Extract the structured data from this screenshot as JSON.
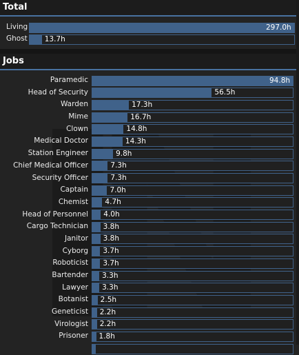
{
  "total": {
    "title": "Total",
    "max": 297.0,
    "rows": [
      {
        "label": "Living",
        "value": 297.0,
        "text": "297.0h"
      },
      {
        "label": "Ghost",
        "value": 13.7,
        "text": "13.7h"
      }
    ]
  },
  "jobs": {
    "title": "Jobs",
    "max": 94.8,
    "rows": [
      {
        "label": "Paramedic",
        "value": 94.8,
        "text": "94.8h"
      },
      {
        "label": "Head of Security",
        "value": 56.5,
        "text": "56.5h"
      },
      {
        "label": "Warden",
        "value": 17.3,
        "text": "17.3h"
      },
      {
        "label": "Mime",
        "value": 16.7,
        "text": "16.7h"
      },
      {
        "label": "Clown",
        "value": 14.8,
        "text": "14.8h"
      },
      {
        "label": "Medical Doctor",
        "value": 14.3,
        "text": "14.3h"
      },
      {
        "label": "Station Engineer",
        "value": 9.8,
        "text": "9.8h"
      },
      {
        "label": "Chief Medical Officer",
        "value": 7.3,
        "text": "7.3h"
      },
      {
        "label": "Security Officer",
        "value": 7.3,
        "text": "7.3h"
      },
      {
        "label": "Captain",
        "value": 7.0,
        "text": "7.0h"
      },
      {
        "label": "Chemist",
        "value": 4.7,
        "text": "4.7h"
      },
      {
        "label": "Head of Personnel",
        "value": 4.0,
        "text": "4.0h"
      },
      {
        "label": "Cargo Technician",
        "value": 3.8,
        "text": "3.8h"
      },
      {
        "label": "Janitor",
        "value": 3.8,
        "text": "3.8h"
      },
      {
        "label": "Cyborg",
        "value": 3.7,
        "text": "3.7h"
      },
      {
        "label": "Roboticist",
        "value": 3.7,
        "text": "3.7h"
      },
      {
        "label": "Bartender",
        "value": 3.3,
        "text": "3.3h"
      },
      {
        "label": "Lawyer",
        "value": 3.3,
        "text": "3.3h"
      },
      {
        "label": "Botanist",
        "value": 2.5,
        "text": "2.5h"
      },
      {
        "label": "Geneticist",
        "value": 2.2,
        "text": "2.2h"
      },
      {
        "label": "Virologist",
        "value": 2.2,
        "text": "2.2h"
      },
      {
        "label": "Prisoner",
        "value": 1.8,
        "text": "1.8h"
      },
      {
        "label": "",
        "value": 1.5,
        "text": ""
      }
    ]
  },
  "colors": {
    "bar_fill": "#40628a",
    "header_underline": "#4972a1",
    "background": "#232323"
  },
  "icons": {
    "watermark": "nanotrasen-logo-watermark"
  }
}
